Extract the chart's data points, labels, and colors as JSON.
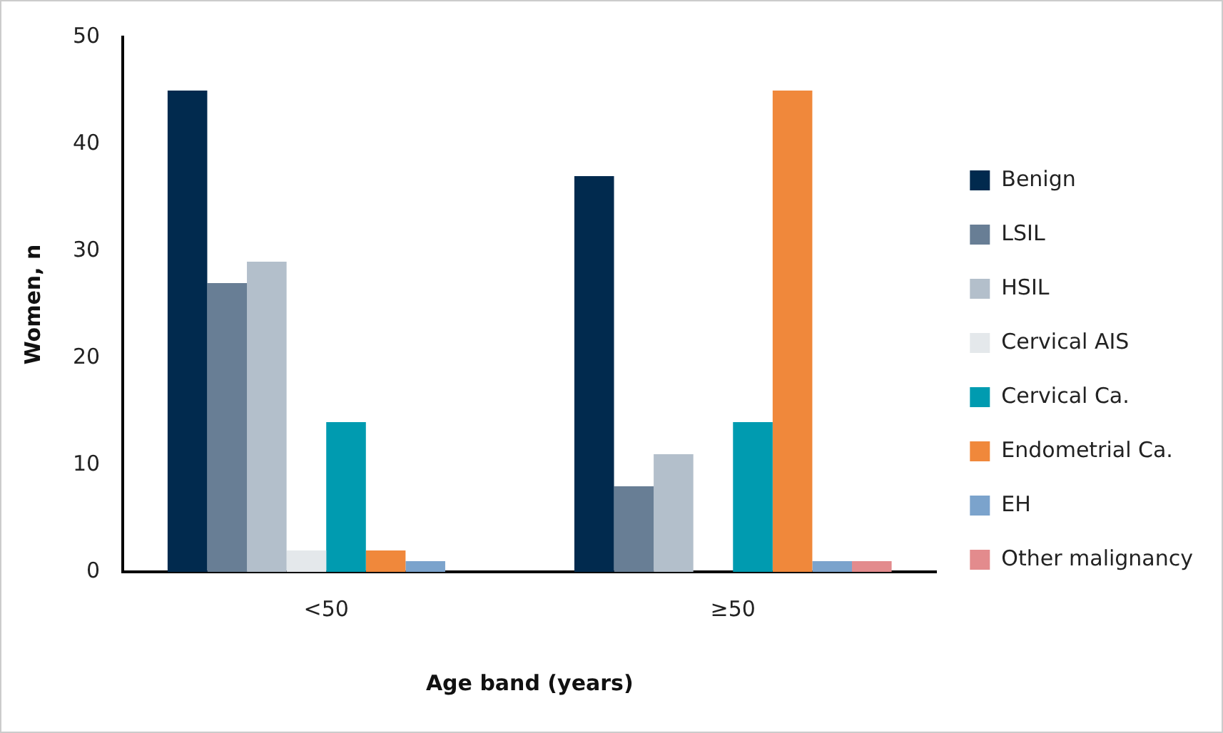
{
  "chart_data": {
    "type": "bar",
    "xlabel": "Age band (years)",
    "ylabel": "Women, n",
    "categories": [
      "<50",
      "≥50"
    ],
    "series": [
      {
        "name": "Benign",
        "color": "#012a4e",
        "values": [
          45,
          37
        ]
      },
      {
        "name": "LSIL",
        "color": "#687e95",
        "values": [
          27,
          8
        ]
      },
      {
        "name": "HSIL",
        "color": "#b3bfcb",
        "values": [
          29,
          11
        ]
      },
      {
        "name": "Cervical AIS",
        "color": "#e4e8eb",
        "values": [
          2,
          0
        ]
      },
      {
        "name": "Cervical Ca.",
        "color": "#009bb0",
        "values": [
          14,
          14
        ]
      },
      {
        "name": "Endometrial Ca.",
        "color": "#f0883b",
        "values": [
          2,
          45
        ]
      },
      {
        "name": "EH",
        "color": "#7ba3cc",
        "values": [
          1,
          1
        ]
      },
      {
        "name": "Other malignancy",
        "color": "#e38b8d",
        "values": [
          0,
          1
        ]
      }
    ],
    "ylim": [
      0,
      50
    ],
    "yticks": [
      0,
      10,
      20,
      30,
      40,
      50
    ],
    "grid": false,
    "legend": "right"
  }
}
